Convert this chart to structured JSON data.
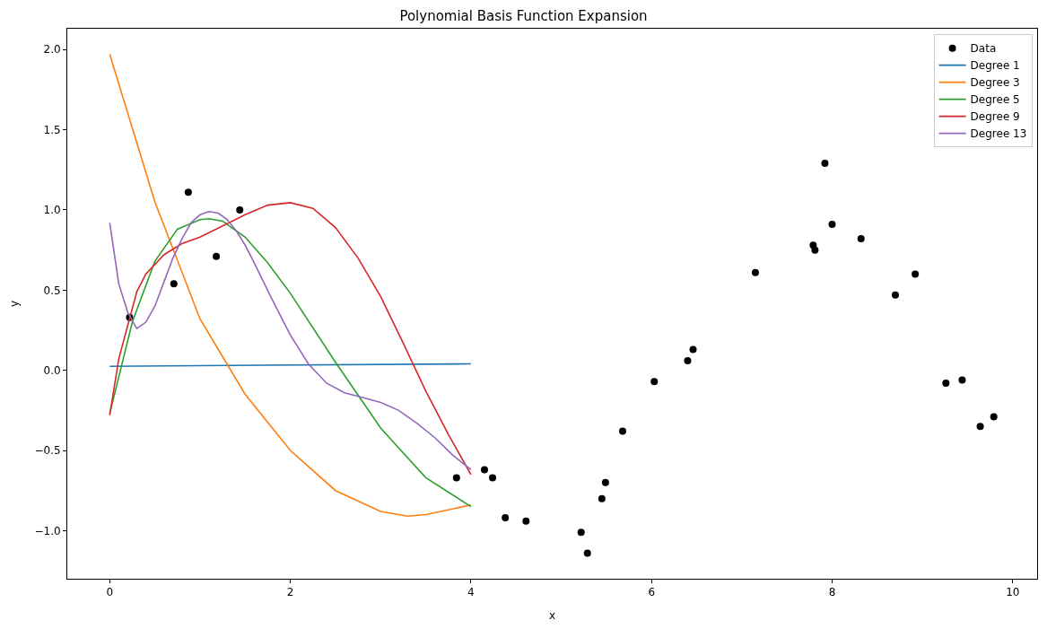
{
  "chart_data": {
    "type": "line",
    "title": "Polynomial Basis Function Expansion",
    "xlabel": "x",
    "ylabel": "y",
    "xlim": [
      -0.47,
      10.27
    ],
    "ylim": [
      -1.3,
      2.13
    ],
    "xticks": [
      0,
      2,
      4,
      6,
      8,
      10
    ],
    "yticks": [
      {
        "value": -1,
        "label": "−1.0"
      },
      {
        "value": -0.5,
        "label": "−0.5"
      },
      {
        "value": 0,
        "label": "0.0"
      },
      {
        "value": 0.5,
        "label": "0.5"
      },
      {
        "value": 1,
        "label": "1.0"
      },
      {
        "value": 1.5,
        "label": "1.5"
      },
      {
        "value": 2,
        "label": "2.0"
      }
    ],
    "legend": "top right",
    "marker": "none",
    "line_style": "solid",
    "series": [
      {
        "name": "Data",
        "type": "scatter",
        "marker": "circle",
        "color": "#000000",
        "x": [
          0.22,
          0.71,
          0.87,
          1.18,
          1.44,
          3.84,
          4.15,
          4.24,
          4.38,
          4.61,
          5.22,
          5.29,
          5.45,
          5.49,
          5.68,
          6.03,
          6.4,
          6.46,
          7.15,
          7.79,
          7.81,
          7.92,
          8.0,
          8.32,
          8.7,
          8.92,
          9.26,
          9.44,
          9.64,
          9.79
        ],
        "values": [
          0.33,
          0.54,
          1.11,
          0.71,
          1.0,
          -0.67,
          -0.62,
          -0.67,
          -0.92,
          -0.94,
          -1.01,
          -1.14,
          -0.8,
          -0.7,
          -0.38,
          -0.07,
          0.06,
          0.13,
          0.61,
          0.78,
          0.75,
          1.29,
          0.91,
          0.82,
          0.47,
          0.6,
          -0.08,
          -0.06,
          -0.35,
          -0.29
        ]
      },
      {
        "name": "Degree 1",
        "color": "#1f77b4",
        "x": [
          0,
          4
        ],
        "values": [
          0.025,
          0.04
        ]
      },
      {
        "name": "Degree 3",
        "color": "#ff7f0e",
        "x": [
          0,
          0.5,
          1,
          1.5,
          2,
          2.5,
          3,
          3.3,
          3.5,
          4
        ],
        "values": [
          1.97,
          1.05,
          0.32,
          -0.15,
          -0.5,
          -0.75,
          -0.88,
          -0.91,
          -0.9,
          -0.84
        ]
      },
      {
        "name": "Degree 5",
        "color": "#2ca02c",
        "x": [
          0,
          0.25,
          0.5,
          0.75,
          1,
          1.1,
          1.25,
          1.5,
          1.75,
          2,
          2.5,
          3,
          3.5,
          4
        ],
        "values": [
          -0.27,
          0.3,
          0.68,
          0.88,
          0.94,
          0.945,
          0.93,
          0.83,
          0.67,
          0.48,
          0.05,
          -0.36,
          -0.67,
          -0.85
        ]
      },
      {
        "name": "Degree 9",
        "color": "#d62728",
        "x": [
          0,
          0.1,
          0.3,
          0.4,
          0.6,
          0.8,
          1,
          1.25,
          1.5,
          1.75,
          2,
          2.25,
          2.5,
          2.75,
          3,
          3.25,
          3.5,
          3.75,
          4
        ],
        "values": [
          -0.28,
          0.07,
          0.49,
          0.6,
          0.72,
          0.79,
          0.83,
          0.9,
          0.97,
          1.03,
          1.045,
          1.01,
          0.89,
          0.7,
          0.46,
          0.17,
          -0.13,
          -0.4,
          -0.65
        ]
      },
      {
        "name": "Degree 13",
        "color": "#9467bd",
        "x": [
          0,
          0.1,
          0.2,
          0.3,
          0.4,
          0.5,
          0.6,
          0.7,
          0.8,
          0.9,
          1,
          1.1,
          1.2,
          1.3,
          1.4,
          1.5,
          1.6,
          1.8,
          2,
          2.2,
          2.4,
          2.6,
          2.8,
          3,
          3.2,
          3.4,
          3.6,
          3.8,
          4
        ],
        "values": [
          0.92,
          0.54,
          0.36,
          0.26,
          0.3,
          0.4,
          0.55,
          0.7,
          0.82,
          0.92,
          0.97,
          0.99,
          0.98,
          0.94,
          0.87,
          0.78,
          0.67,
          0.44,
          0.22,
          0.04,
          -0.08,
          -0.14,
          -0.17,
          -0.2,
          -0.25,
          -0.33,
          -0.42,
          -0.53,
          -0.62
        ]
      }
    ]
  }
}
